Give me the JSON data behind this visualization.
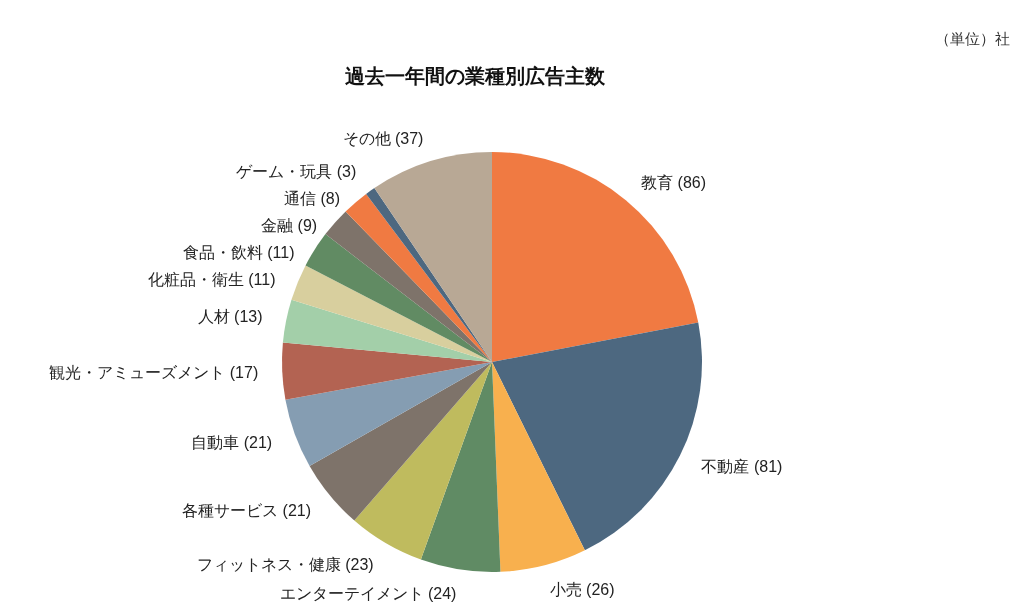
{
  "chart_data": {
    "type": "pie",
    "title": "過去一年間の業種別広告主数",
    "annotations": [
      "（単位）社"
    ],
    "categories": [
      "教育",
      "不動産",
      "小売",
      "エンターテイメント",
      "フィットネス・健康",
      "各種サービス",
      "自動車",
      "観光・アミューズメント",
      "人材",
      "化粧品・衛生",
      "食品・飲料",
      "金融",
      "通信",
      "ゲーム・玩具",
      "その他"
    ],
    "values": [
      86,
      81,
      26,
      24,
      23,
      21,
      21,
      17,
      13,
      11,
      11,
      9,
      8,
      3,
      37
    ],
    "value_labels": [
      "(86)",
      "(81)",
      "(26)",
      "(24)",
      "(23)",
      "(21)",
      "(21)",
      "(17)",
      "(13)",
      "(11)",
      "(11)",
      "(9)",
      "(8)",
      "(3)",
      "(37)"
    ],
    "colors": [
      "#f07a42",
      "#4d6880",
      "#f8b04e",
      "#608b64",
      "#bfbb5e",
      "#7e736a",
      "#859db2",
      "#b36352",
      "#a3cfa9",
      "#d8cf9e",
      "#618b63",
      "#7e736a",
      "#f07a42",
      "#4d6880",
      "#b8a895"
    ]
  }
}
